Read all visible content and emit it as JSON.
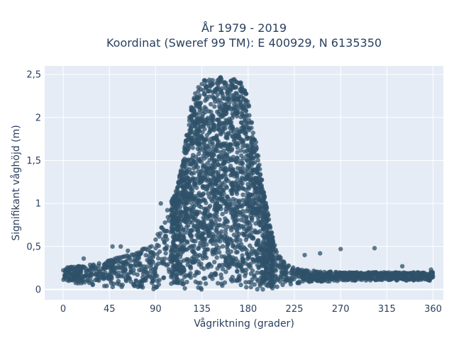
{
  "chart_data": {
    "type": "scatter",
    "title": [
      "År 1979 - 2019",
      "Koordinat (Sweref 99 TM): E 400929, N 6135350"
    ],
    "xlabel": "Vågriktning (grader)",
    "ylabel": "Signifikant våghöjd (m)",
    "xlim": [
      -18,
      370
    ],
    "ylim": [
      -0.12,
      2.6
    ],
    "xticks": [
      0,
      45,
      90,
      135,
      180,
      225,
      270,
      315,
      360
    ],
    "xtick_labels": [
      "0",
      "45",
      "90",
      "135",
      "180",
      "225",
      "270",
      "315",
      "360"
    ],
    "yticks": [
      0,
      0.5,
      1,
      1.5,
      2,
      2.5
    ],
    "ytick_labels": [
      "0",
      "0,5",
      "1",
      "1,5",
      "2",
      "2,5"
    ],
    "grid": true,
    "marker_color": "#2f5269",
    "background_color": "#e5ecf6",
    "envelope": {
      "x": [
        0,
        20,
        40,
        55,
        70,
        85,
        95,
        100,
        110,
        115,
        120,
        125,
        130,
        135,
        140,
        150,
        160,
        170,
        175,
        180,
        185,
        190,
        195,
        200,
        205,
        210,
        215,
        225,
        240,
        270,
        300,
        330,
        360
      ],
      "y_max": [
        0.25,
        0.28,
        0.32,
        0.38,
        0.42,
        0.52,
        0.7,
        0.9,
        1.15,
        1.45,
        1.8,
        2.15,
        2.35,
        2.42,
        2.45,
        2.47,
        2.46,
        2.45,
        2.42,
        2.2,
        1.9,
        1.55,
        1.15,
        0.85,
        0.55,
        0.4,
        0.32,
        0.25,
        0.22,
        0.2,
        0.2,
        0.2,
        0.2
      ],
      "y_min": [
        0.08,
        0.06,
        0.04,
        0.02,
        0.01,
        0,
        0,
        0,
        0,
        0,
        0,
        0,
        0,
        0,
        0,
        0,
        0,
        0,
        0,
        0,
        0,
        0,
        0,
        0,
        0.01,
        0.02,
        0.04,
        0.06,
        0.08,
        0.1,
        0.1,
        0.1,
        0.1
      ]
    },
    "outliers": [
      {
        "x": 20,
        "y": 0.36
      },
      {
        "x": 48,
        "y": 0.5
      },
      {
        "x": 56,
        "y": 0.5
      },
      {
        "x": 63,
        "y": 0.45
      },
      {
        "x": 90,
        "y": 0.58
      },
      {
        "x": 95,
        "y": 1.0
      },
      {
        "x": 100,
        "y": 0.62
      },
      {
        "x": 235,
        "y": 0.4
      },
      {
        "x": 250,
        "y": 0.42
      },
      {
        "x": 270,
        "y": 0.47
      },
      {
        "x": 303,
        "y": 0.48
      },
      {
        "x": 330,
        "y": 0.27
      },
      {
        "x": 358,
        "y": 0.23
      }
    ]
  }
}
